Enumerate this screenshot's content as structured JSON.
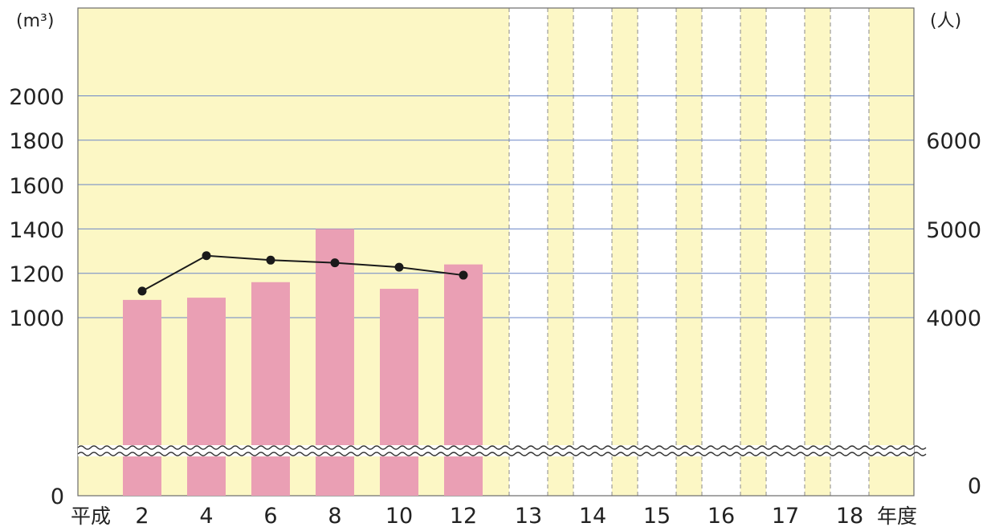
{
  "chart_data": {
    "type": "bar+line",
    "left_unit": "(m³)",
    "right_unit": "(人)",
    "x_prefix": "平成",
    "x_suffix": "年度",
    "categories": [
      "2",
      "4",
      "6",
      "8",
      "10",
      "12",
      "13",
      "14",
      "15",
      "16",
      "17",
      "18"
    ],
    "bar_series": {
      "values": [
        1080,
        1090,
        1160,
        1400,
        1130,
        1240,
        null,
        null,
        null,
        null,
        null,
        null
      ]
    },
    "line_series": {
      "values": [
        4300,
        4700,
        4650,
        4620,
        4570,
        4480,
        null,
        null,
        null,
        null,
        null,
        null
      ]
    },
    "left_ticks": [
      "0",
      "1000",
      "1200",
      "1400",
      "1600",
      "1800",
      "2000"
    ],
    "right_ticks": [
      "0",
      "4000",
      "5000",
      "6000"
    ],
    "left_axis_break": true,
    "right_axis_break": true,
    "grid": true,
    "colors": {
      "bar": "#ea9fb4",
      "line": "#1a1a1a",
      "plot_bg": "#fcf7c5",
      "grid_blue": "#6a86c8",
      "grid_red": "#cc7f64",
      "column_divider": "#8a8a8a"
    }
  }
}
